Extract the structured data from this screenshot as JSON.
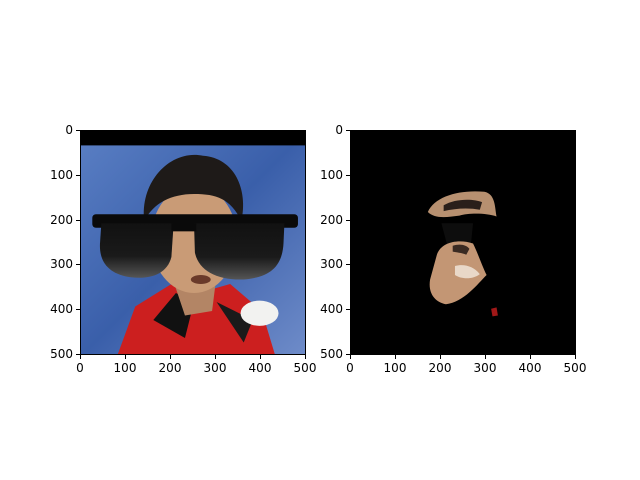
{
  "plots": [
    {
      "id": "left",
      "xticks": [
        "0",
        "100",
        "200",
        "300",
        "400",
        "500"
      ],
      "yticks": [
        "0",
        "100",
        "200",
        "300",
        "400",
        "500"
      ],
      "xlim": [
        0,
        500
      ],
      "ylim": [
        500,
        0
      ],
      "content": "badminton player photo with sunglasses overlay"
    },
    {
      "id": "right",
      "xticks": [
        "0",
        "100",
        "200",
        "300",
        "400",
        "500"
      ],
      "yticks": [
        "0",
        "100",
        "200",
        "300",
        "400",
        "500"
      ],
      "xlim": [
        0,
        500
      ],
      "ylim": [
        500,
        0
      ],
      "content": "masked face regions on black background"
    }
  ],
  "colors": {
    "background_top_bar": "#000000",
    "sky_blue": "#4a73bd",
    "jersey_red": "#d02020",
    "skin": "#c89a78",
    "hair": "#1e1a18",
    "lens": "#2a2a2a"
  }
}
